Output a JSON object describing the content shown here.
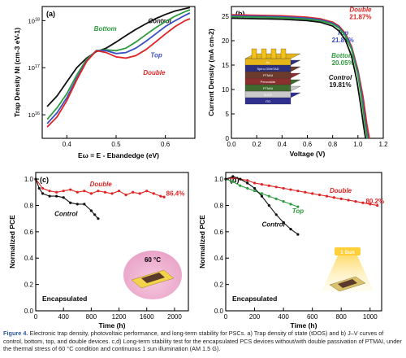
{
  "figure": {
    "caption": {
      "label": "Figure 4.",
      "text": "Electronic trap density, photovoltaic performance, and long-term stability for PSCs. a) Trap density of state (tDOS) and b) J–V curves of control, bottom, top, and double devices. c,d) Long-term stability test for the encapsulated PCS devices without/with double passivation of PTMAI, under the thermal stress of 60 °C condition and continuous 1 sun illumination (AM 1.5 G)."
    }
  },
  "colors": {
    "control": "#111111",
    "bottom": "#2e9c3e",
    "top": "#3b4fc4",
    "double": "#e02424"
  },
  "chart_data": [
    {
      "panel": "(a)",
      "type": "line",
      "xlabel": "Eω = E - Ebandedge (eV)",
      "ylabel": "Trap Density Nt (cm-3 eV-1)",
      "xlim": [
        0.35,
        0.66
      ],
      "ylim_log10": [
        15.5,
        18.3
      ],
      "y_scale": "log",
      "xticks": [
        0.4,
        0.5,
        0.6
      ],
      "yticks": [
        "10^16",
        "10^17",
        "10^18"
      ],
      "series": [
        {
          "name": "Control",
          "color": "control",
          "x": [
            0.36,
            0.38,
            0.4,
            0.42,
            0.44,
            0.46,
            0.48,
            0.5,
            0.52,
            0.54,
            0.56,
            0.58,
            0.6,
            0.62,
            0.64,
            0.65
          ],
          "y": [
            1.5e+16,
            2.5e+16,
            5e+16,
            1e+17,
            1.6e+17,
            2.2e+17,
            2.6e+17,
            3.5e+17,
            4.8e+17,
            6.5e+17,
            8.5e+17,
            1.1e+18,
            1.35e+18,
            1.6e+18,
            1.8e+18,
            1.9e+18
          ]
        },
        {
          "name": "Bottom",
          "color": "bottom",
          "x": [
            0.36,
            0.38,
            0.4,
            0.42,
            0.44,
            0.46,
            0.48,
            0.5,
            0.52,
            0.54,
            0.56,
            0.58,
            0.6,
            0.62,
            0.64,
            0.65
          ],
          "y": [
            8000000000000000.0,
            1.4e+16,
            2.8e+16,
            7e+16,
            1.5e+17,
            2.3e+17,
            2.4e+17,
            2.3e+17,
            2.6e+17,
            3.5e+17,
            5e+17,
            7e+17,
            9.5e+17,
            1.25e+18,
            1.55e+18,
            1.7e+18
          ]
        },
        {
          "name": "Top",
          "color": "top",
          "x": [
            0.36,
            0.38,
            0.4,
            0.42,
            0.44,
            0.46,
            0.48,
            0.5,
            0.52,
            0.54,
            0.56,
            0.58,
            0.6,
            0.62,
            0.64,
            0.65
          ],
          "y": [
            6500000000000000.0,
            1.1e+16,
            2.3e+16,
            6e+16,
            1.4e+17,
            2.3e+17,
            2.3e+17,
            2e+17,
            2.1e+17,
            2.6e+17,
            3.6e+17,
            5.2e+17,
            7.5e+17,
            1e+18,
            1.3e+18,
            1.45e+18
          ]
        },
        {
          "name": "Double",
          "color": "double",
          "x": [
            0.36,
            0.38,
            0.4,
            0.42,
            0.44,
            0.46,
            0.48,
            0.5,
            0.52,
            0.54,
            0.56,
            0.58,
            0.6,
            0.62,
            0.64,
            0.65
          ],
          "y": [
            5500000000000000.0,
            9000000000000000.0,
            2e+16,
            5.5e+16,
            1.35e+17,
            2.3e+17,
            2.1e+17,
            1.7e+17,
            1.6e+17,
            1.8e+17,
            2.4e+17,
            3.5e+17,
            5.2e+17,
            7.5e+17,
            1e+18,
            1.1e+18
          ]
        }
      ]
    },
    {
      "panel": "(b)",
      "type": "line",
      "xlabel": "Voltage (V)",
      "ylabel": "Current Density (mA cm-2)",
      "xlim": [
        0,
        1.2
      ],
      "ylim": [
        0,
        27
      ],
      "xticks": [
        0.0,
        0.2,
        0.4,
        0.6,
        0.8,
        1.0,
        1.2
      ],
      "yticks": [
        0,
        5,
        10,
        15,
        20,
        25
      ],
      "inset_layers": [
        "Au",
        "Spiro-OMeTAD",
        "PTMAI",
        "Perovskite",
        "PTMAI",
        "SnO2",
        "ITO"
      ],
      "series": [
        {
          "name": "Double",
          "value": "21.87%",
          "color": "double",
          "x": [
            0,
            0.2,
            0.4,
            0.6,
            0.7,
            0.8,
            0.85,
            0.9,
            0.95,
            1.0,
            1.04,
            1.07,
            1.09
          ],
          "y": [
            25.3,
            25.2,
            25.1,
            24.8,
            24.5,
            23.8,
            23.0,
            21.5,
            18.8,
            14.0,
            8.5,
            3.0,
            0
          ]
        },
        {
          "name": "Top",
          "value": "21.81%",
          "color": "top",
          "x": [
            0,
            0.2,
            0.4,
            0.6,
            0.7,
            0.8,
            0.85,
            0.9,
            0.95,
            1.0,
            1.035,
            1.06,
            1.08
          ],
          "y": [
            25.1,
            25.0,
            24.9,
            24.6,
            24.3,
            23.6,
            22.8,
            21.2,
            18.5,
            13.5,
            8.0,
            3.0,
            0
          ]
        },
        {
          "name": "Bottom",
          "value": "20.05%",
          "color": "bottom",
          "x": [
            0,
            0.2,
            0.4,
            0.6,
            0.7,
            0.8,
            0.85,
            0.9,
            0.95,
            1.0,
            1.03,
            1.055,
            1.075
          ],
          "y": [
            24.9,
            24.8,
            24.7,
            24.4,
            24.1,
            23.4,
            22.6,
            21.0,
            18.2,
            13.0,
            8.0,
            3.0,
            0
          ]
        },
        {
          "name": "Control",
          "value": "19.81%",
          "color": "control",
          "x": [
            0,
            0.2,
            0.4,
            0.6,
            0.7,
            0.8,
            0.85,
            0.9,
            0.95,
            0.99,
            1.02,
            1.045,
            1.06
          ],
          "y": [
            24.6,
            24.5,
            24.4,
            24.1,
            23.8,
            23.0,
            22.0,
            20.2,
            16.8,
            12.0,
            7.0,
            2.5,
            0
          ]
        }
      ]
    },
    {
      "panel": "(c)",
      "type": "line",
      "xlabel": "Time (h)",
      "ylabel": "Normalized PCE",
      "xlim": [
        0,
        2200
      ],
      "ylim": [
        0,
        1.05
      ],
      "xticks": [
        0,
        400,
        800,
        1200,
        1600,
        2000
      ],
      "yticks": [
        0.0,
        0.2,
        0.4,
        0.6,
        0.8,
        1.0
      ],
      "annotation": "Encapsulated",
      "inset_label": "60 °C",
      "series": [
        {
          "name": "Double",
          "end_label": "86.4%",
          "color": "double",
          "x": [
            0,
            100,
            200,
            300,
            400,
            500,
            600,
            700,
            800,
            900,
            1000,
            1100,
            1200,
            1300,
            1400,
            1500,
            1600,
            1700,
            1800,
            1850
          ],
          "y": [
            1.0,
            0.93,
            0.91,
            0.9,
            0.91,
            0.92,
            0.9,
            0.91,
            0.89,
            0.91,
            0.9,
            0.89,
            0.91,
            0.88,
            0.9,
            0.89,
            0.91,
            0.89,
            0.87,
            0.864
          ]
        },
        {
          "name": "Control",
          "color": "control",
          "x": [
            0,
            50,
            100,
            200,
            300,
            400,
            500,
            600,
            700,
            800,
            850,
            900
          ],
          "y": [
            1.0,
            0.93,
            0.89,
            0.87,
            0.87,
            0.86,
            0.82,
            0.81,
            0.81,
            0.76,
            0.73,
            0.7
          ]
        }
      ]
    },
    {
      "panel": "(d)",
      "type": "line",
      "xlabel": "Time (h)",
      "ylabel": "Normalized PCE",
      "xlim": [
        0,
        1080
      ],
      "ylim": [
        0,
        1.05
      ],
      "xticks": [
        0,
        200,
        400,
        600,
        800,
        1000
      ],
      "yticks": [
        0.0,
        0.2,
        0.4,
        0.6,
        0.8,
        1.0
      ],
      "annotation": "Encapsulated",
      "inset_label": "1 Sun",
      "series": [
        {
          "name": "Double",
          "end_label": "80.2%",
          "color": "double",
          "x": [
            0,
            50,
            100,
            150,
            200,
            250,
            300,
            350,
            400,
            450,
            500,
            550,
            600,
            650,
            700,
            750,
            800,
            850,
            900,
            950,
            1000,
            1050
          ],
          "y": [
            1.0,
            1.01,
            1.0,
            0.99,
            0.97,
            0.96,
            0.95,
            0.94,
            0.93,
            0.92,
            0.91,
            0.9,
            0.89,
            0.88,
            0.87,
            0.86,
            0.85,
            0.84,
            0.83,
            0.82,
            0.81,
            0.8
          ]
        },
        {
          "name": "Top",
          "color": "bottom",
          "x": [
            0,
            50,
            100,
            150,
            200,
            250,
            300,
            350,
            400,
            450,
            500
          ],
          "y": [
            1.0,
            0.98,
            0.95,
            0.93,
            0.91,
            0.89,
            0.87,
            0.85,
            0.83,
            0.81,
            0.79
          ]
        },
        {
          "name": "Control",
          "color": "control",
          "x": [
            0,
            50,
            100,
            150,
            200,
            250,
            300,
            350,
            400,
            450,
            500
          ],
          "y": [
            1.0,
            1.02,
            1.0,
            0.97,
            0.93,
            0.87,
            0.8,
            0.73,
            0.67,
            0.62,
            0.58
          ]
        }
      ]
    }
  ]
}
